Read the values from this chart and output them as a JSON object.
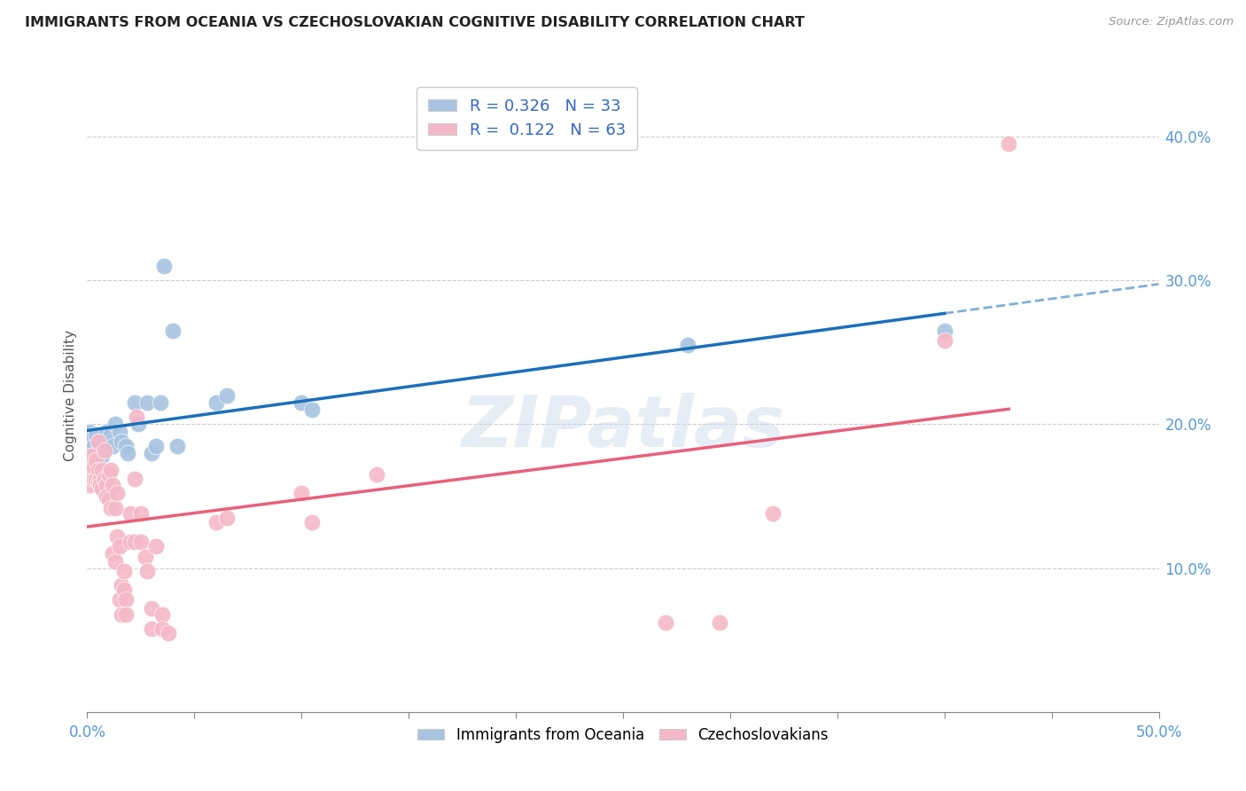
{
  "title": "IMMIGRANTS FROM OCEANIA VS CZECHOSLOVAKIAN COGNITIVE DISABILITY CORRELATION CHART",
  "source": "Source: ZipAtlas.com",
  "ylabel": "Cognitive Disability",
  "xlim": [
    0.0,
    0.5
  ],
  "ylim": [
    0.0,
    0.44
  ],
  "xtick_positions": [
    0.0,
    0.05,
    0.1,
    0.15,
    0.2,
    0.25,
    0.3,
    0.35,
    0.4,
    0.45,
    0.5
  ],
  "yticks": [
    0.1,
    0.2,
    0.3,
    0.4
  ],
  "ytick_labels": [
    "10.0%",
    "20.0%",
    "30.0%",
    "40.0%"
  ],
  "watermark": "ZIPatlas",
  "oceania_color": "#a8c4e0",
  "czech_color": "#f4b8c8",
  "line_oceania_color": "#1a6fba",
  "line_czech_color": "#e8607a",
  "oceania_scatter": [
    [
      0.0,
      0.192
    ],
    [
      0.001,
      0.195
    ],
    [
      0.002,
      0.19
    ],
    [
      0.003,
      0.185
    ],
    [
      0.004,
      0.193
    ],
    [
      0.005,
      0.188
    ],
    [
      0.006,
      0.183
    ],
    [
      0.007,
      0.178
    ],
    [
      0.008,
      0.19
    ],
    [
      0.009,
      0.195
    ],
    [
      0.01,
      0.188
    ],
    [
      0.011,
      0.193
    ],
    [
      0.012,
      0.185
    ],
    [
      0.013,
      0.2
    ],
    [
      0.015,
      0.195
    ],
    [
      0.016,
      0.188
    ],
    [
      0.018,
      0.185
    ],
    [
      0.019,
      0.18
    ],
    [
      0.022,
      0.215
    ],
    [
      0.024,
      0.2
    ],
    [
      0.028,
      0.215
    ],
    [
      0.03,
      0.18
    ],
    [
      0.032,
      0.185
    ],
    [
      0.034,
      0.215
    ],
    [
      0.036,
      0.31
    ],
    [
      0.04,
      0.265
    ],
    [
      0.042,
      0.185
    ],
    [
      0.06,
      0.215
    ],
    [
      0.065,
      0.22
    ],
    [
      0.1,
      0.215
    ],
    [
      0.105,
      0.21
    ],
    [
      0.28,
      0.255
    ],
    [
      0.4,
      0.265
    ]
  ],
  "czech_scatter": [
    [
      0.0,
      0.175
    ],
    [
      0.001,
      0.165
    ],
    [
      0.001,
      0.158
    ],
    [
      0.002,
      0.178
    ],
    [
      0.002,
      0.165
    ],
    [
      0.003,
      0.162
    ],
    [
      0.003,
      0.17
    ],
    [
      0.004,
      0.175
    ],
    [
      0.004,
      0.162
    ],
    [
      0.005,
      0.168
    ],
    [
      0.005,
      0.16
    ],
    [
      0.005,
      0.188
    ],
    [
      0.006,
      0.162
    ],
    [
      0.006,
      0.158
    ],
    [
      0.007,
      0.155
    ],
    [
      0.007,
      0.168
    ],
    [
      0.008,
      0.182
    ],
    [
      0.008,
      0.162
    ],
    [
      0.009,
      0.158
    ],
    [
      0.009,
      0.15
    ],
    [
      0.01,
      0.165
    ],
    [
      0.01,
      0.148
    ],
    [
      0.011,
      0.142
    ],
    [
      0.011,
      0.168
    ],
    [
      0.012,
      0.158
    ],
    [
      0.012,
      0.11
    ],
    [
      0.013,
      0.142
    ],
    [
      0.013,
      0.105
    ],
    [
      0.014,
      0.152
    ],
    [
      0.014,
      0.122
    ],
    [
      0.015,
      0.078
    ],
    [
      0.015,
      0.115
    ],
    [
      0.016,
      0.068
    ],
    [
      0.016,
      0.088
    ],
    [
      0.017,
      0.085
    ],
    [
      0.017,
      0.098
    ],
    [
      0.018,
      0.078
    ],
    [
      0.018,
      0.068
    ],
    [
      0.02,
      0.118
    ],
    [
      0.02,
      0.138
    ],
    [
      0.022,
      0.118
    ],
    [
      0.022,
      0.162
    ],
    [
      0.023,
      0.205
    ],
    [
      0.025,
      0.138
    ],
    [
      0.025,
      0.118
    ],
    [
      0.027,
      0.108
    ],
    [
      0.028,
      0.098
    ],
    [
      0.03,
      0.058
    ],
    [
      0.03,
      0.072
    ],
    [
      0.032,
      0.115
    ],
    [
      0.035,
      0.068
    ],
    [
      0.035,
      0.058
    ],
    [
      0.038,
      0.055
    ],
    [
      0.06,
      0.132
    ],
    [
      0.065,
      0.135
    ],
    [
      0.1,
      0.152
    ],
    [
      0.105,
      0.132
    ],
    [
      0.135,
      0.165
    ],
    [
      0.27,
      0.062
    ],
    [
      0.295,
      0.062
    ],
    [
      0.32,
      0.138
    ],
    [
      0.4,
      0.258
    ],
    [
      0.43,
      0.395
    ]
  ]
}
